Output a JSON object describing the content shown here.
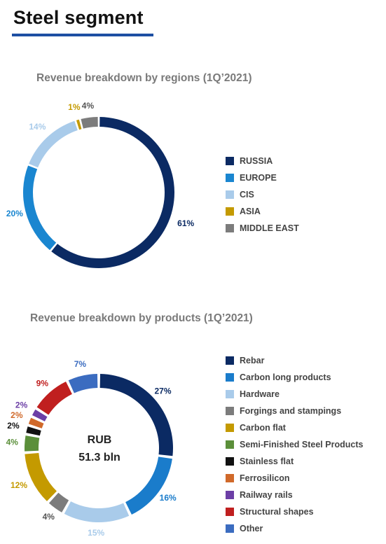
{
  "page": {
    "title": "Steel segment"
  },
  "chart_data": [
    {
      "type": "pie",
      "title": "Revenue breakdown by regions (1Q’2021)",
      "labels": [
        "RUSSIA",
        "EUROPE",
        "CIS",
        "ASIA",
        "MIDDLE EAST"
      ],
      "values": [
        61,
        20,
        14,
        1,
        4
      ],
      "data_labels": [
        "61%",
        "20%",
        "14%",
        "1%",
        "4%"
      ],
      "colors": [
        "#0b2a63",
        "#1a86d0",
        "#a9cbea",
        "#c49a00",
        "#7c7c7c"
      ],
      "label_colors": [
        "#0b2a63",
        "#1a86d0",
        "#a9cbea",
        "#c49a00",
        "#555555"
      ],
      "legend_position": "right",
      "style": "donut"
    },
    {
      "type": "pie",
      "title": "Revenue breakdown by products (1Q’2021)",
      "center_text": [
        "RUB",
        "51.3 bln"
      ],
      "labels": [
        "Rebar",
        "Carbon long products",
        "Hardware",
        "Forgings and stampings",
        "Carbon flat",
        "Semi-Finished Steel Products",
        "Stainless flat",
        "Ferrosilicon",
        "Railway rails",
        "Structural shapes",
        "Other"
      ],
      "values": [
        27,
        16,
        15,
        4,
        12,
        4,
        2,
        2,
        2,
        9,
        7
      ],
      "data_labels": [
        "27%",
        "16%",
        "15%",
        "4%",
        "12%",
        "4%",
        "2%",
        "2%",
        "2%",
        "9%",
        "7%"
      ],
      "colors": [
        "#0b2a63",
        "#1a7ccb",
        "#a9cbea",
        "#7c7c7c",
        "#c49a00",
        "#5b8f3a",
        "#111111",
        "#d0692a",
        "#6c3fa6",
        "#c01f1f",
        "#3b6cc0"
      ],
      "label_colors": [
        "#0b2a63",
        "#1a7ccb",
        "#a9cbea",
        "#555555",
        "#c49a00",
        "#5b8f3a",
        "#111111",
        "#d0692a",
        "#6c3fa6",
        "#c01f1f",
        "#3b6cc0"
      ],
      "legend_position": "right",
      "style": "donut"
    }
  ]
}
